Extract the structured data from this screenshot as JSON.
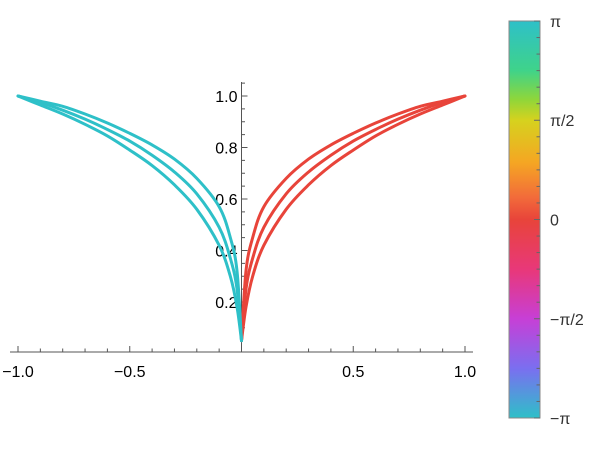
{
  "chart_data": {
    "type": "line",
    "title": "",
    "xlabel": "",
    "ylabel": "",
    "xlim": [
      -1.0,
      1.0
    ],
    "ylim": [
      0.05,
      1.05
    ],
    "grid": false,
    "x_ticks": [
      {
        "value": -1.0,
        "label": "−1.0"
      },
      {
        "value": -0.5,
        "label": "−0.5"
      },
      {
        "value": 0.5,
        "label": "0.5"
      },
      {
        "value": 1.0,
        "label": "1.0"
      }
    ],
    "y_ticks": [
      {
        "value": 0.2,
        "label": "0.2"
      },
      {
        "value": 0.4,
        "label": "0.4"
      },
      {
        "value": 0.6,
        "label": "0.6"
      },
      {
        "value": 0.8,
        "label": "0.8"
      },
      {
        "value": 1.0,
        "label": "1.0"
      }
    ],
    "series": [
      {
        "color": "#e8443a",
        "x": [
          0.0,
          0.02,
          0.05,
          0.1,
          0.2,
          0.3,
          0.4,
          0.5,
          0.6,
          0.7,
          0.8,
          0.9,
          1.0
        ],
        "y": [
          0.05,
          0.18,
          0.3,
          0.42,
          0.56,
          0.655,
          0.73,
          0.79,
          0.845,
          0.89,
          0.93,
          0.965,
          1.0
        ]
      },
      {
        "color": "#e8443a",
        "x": [
          0.0,
          0.02,
          0.05,
          0.1,
          0.2,
          0.3,
          0.4,
          0.5,
          0.6,
          0.7,
          0.8,
          0.9,
          1.0
        ],
        "y": [
          0.05,
          0.25,
          0.37,
          0.49,
          0.62,
          0.705,
          0.77,
          0.825,
          0.87,
          0.91,
          0.945,
          0.975,
          1.0
        ]
      },
      {
        "color": "#e8443a",
        "x": [
          0.0,
          0.02,
          0.05,
          0.1,
          0.2,
          0.3,
          0.4,
          0.5,
          0.6,
          0.7,
          0.8,
          0.9,
          1.0
        ],
        "y": [
          0.05,
          0.32,
          0.45,
          0.57,
          0.68,
          0.755,
          0.81,
          0.855,
          0.895,
          0.93,
          0.96,
          0.98,
          1.0
        ]
      },
      {
        "color": "#2ec0c8",
        "x": [
          0.0,
          -0.02,
          -0.05,
          -0.1,
          -0.2,
          -0.3,
          -0.4,
          -0.5,
          -0.6,
          -0.7,
          -0.8,
          -0.9,
          -1.0
        ],
        "y": [
          0.05,
          0.18,
          0.3,
          0.42,
          0.56,
          0.655,
          0.73,
          0.79,
          0.845,
          0.89,
          0.93,
          0.965,
          1.0
        ]
      },
      {
        "color": "#2ec0c8",
        "x": [
          0.0,
          -0.02,
          -0.05,
          -0.1,
          -0.2,
          -0.3,
          -0.4,
          -0.5,
          -0.6,
          -0.7,
          -0.8,
          -0.9,
          -1.0
        ],
        "y": [
          0.05,
          0.25,
          0.37,
          0.49,
          0.62,
          0.705,
          0.77,
          0.825,
          0.87,
          0.91,
          0.945,
          0.975,
          1.0
        ]
      },
      {
        "color": "#2ec0c8",
        "x": [
          0.0,
          -0.02,
          -0.05,
          -0.1,
          -0.2,
          -0.3,
          -0.4,
          -0.5,
          -0.6,
          -0.7,
          -0.8,
          -0.9,
          -1.0
        ],
        "y": [
          0.05,
          0.32,
          0.45,
          0.57,
          0.68,
          0.755,
          0.81,
          0.855,
          0.895,
          0.93,
          0.96,
          0.98,
          1.0
        ]
      }
    ],
    "colorbar": {
      "ticks": [
        {
          "label": "π",
          "value": 3.14159
        },
        {
          "label": "π/2",
          "value": 1.5708
        },
        {
          "label": "0",
          "value": 0
        },
        {
          "label": "−π/2",
          "value": -1.5708
        },
        {
          "label": "−π",
          "value": -3.14159
        }
      ],
      "range": [
        -3.14159,
        3.14159
      ],
      "gradient_stops": [
        {
          "value": 3.14159,
          "color": "#2ec0c8"
        },
        {
          "value": 2.36,
          "color": "#3fd38a"
        },
        {
          "value": 1.9,
          "color": "#8fd63a"
        },
        {
          "value": 1.5708,
          "color": "#d6d21e"
        },
        {
          "value": 0.9,
          "color": "#f5a623"
        },
        {
          "value": 0.35,
          "color": "#f26b3a"
        },
        {
          "value": 0,
          "color": "#e8443a"
        },
        {
          "value": -0.8,
          "color": "#e8387a"
        },
        {
          "value": -1.5708,
          "color": "#c73fd6"
        },
        {
          "value": -2.36,
          "color": "#7a6ff0"
        },
        {
          "value": -3.14159,
          "color": "#2ec0c8"
        }
      ]
    }
  }
}
